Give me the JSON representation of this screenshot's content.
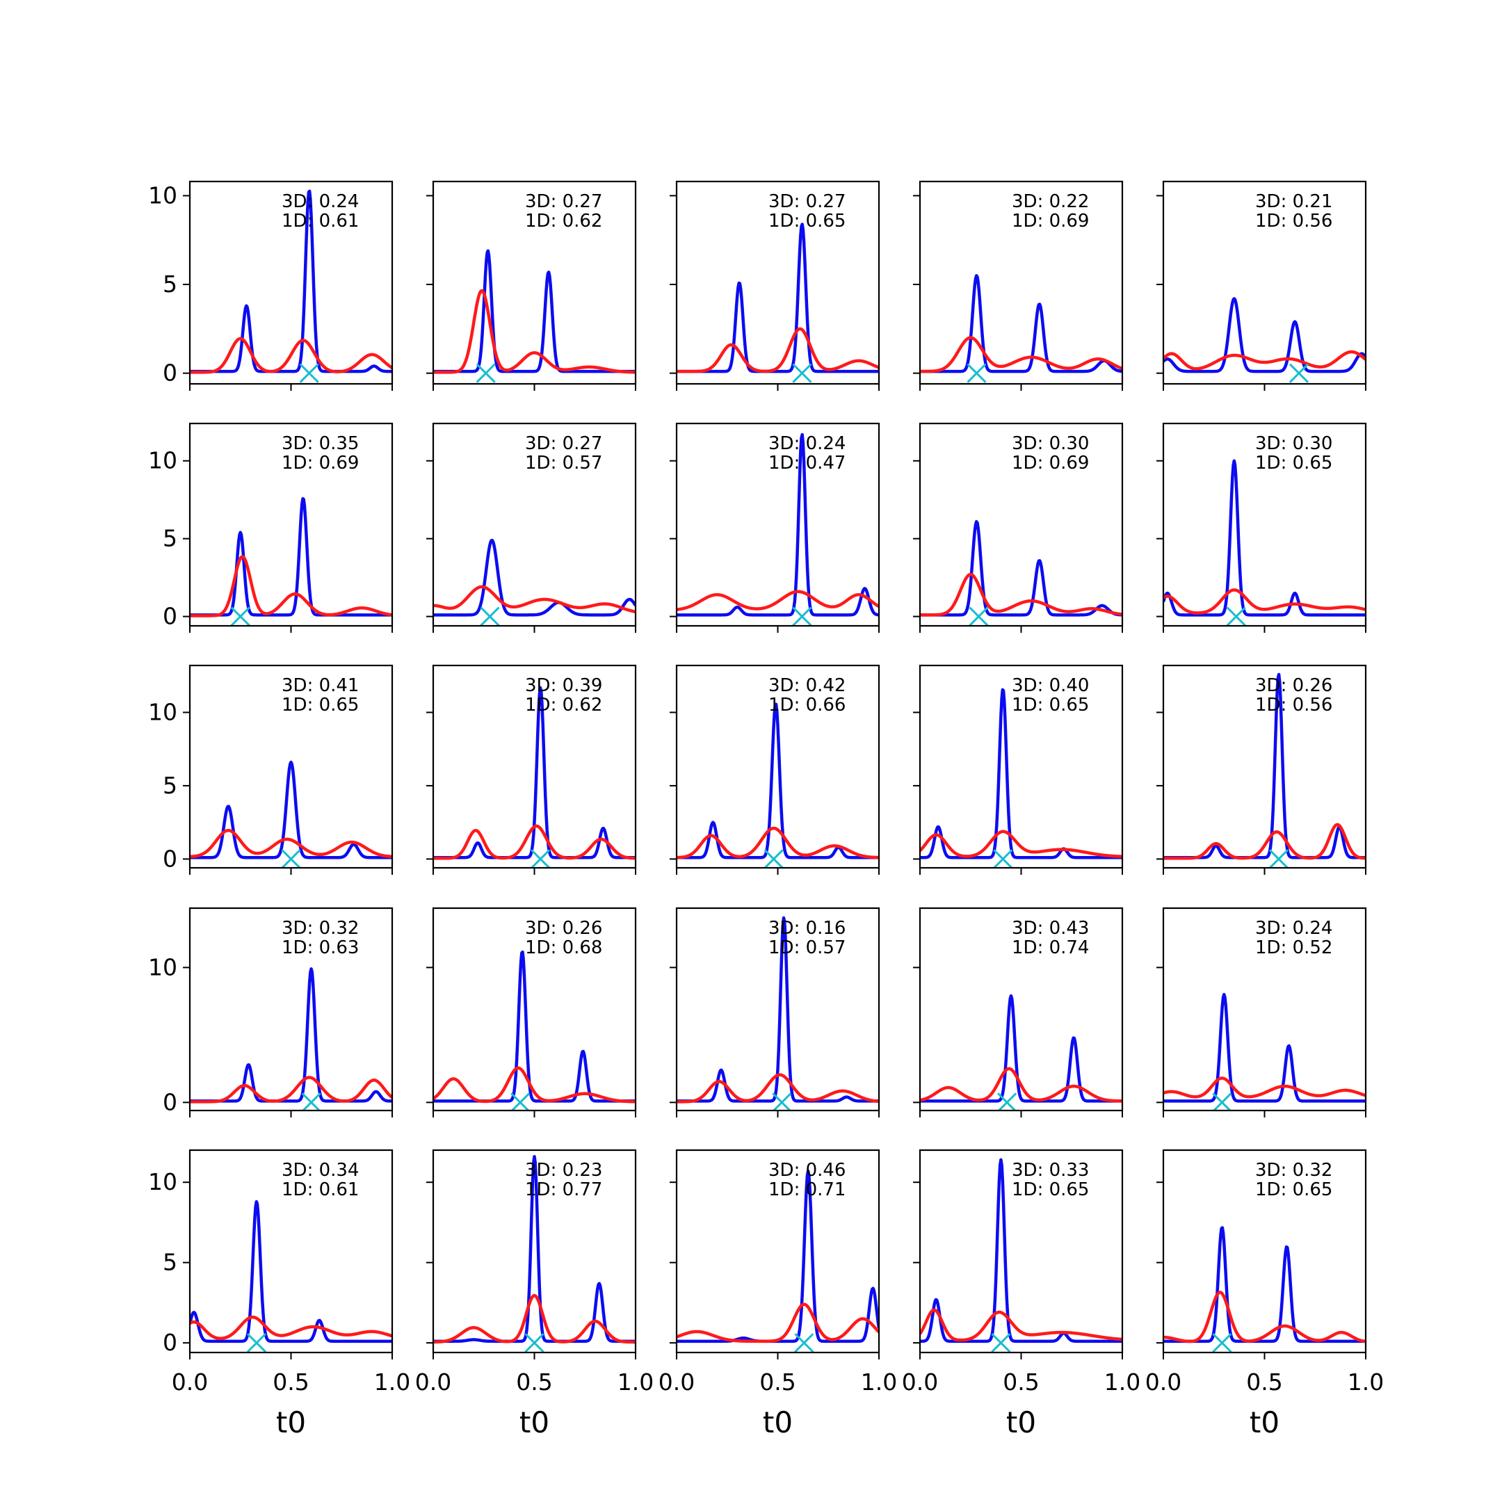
{
  "figure": {
    "xlabel": "t0",
    "colors": {
      "blue": "#0c0cf0",
      "red": "#ff1a1a",
      "cyan": "#17becf",
      "axes": "#000000"
    }
  },
  "chart_data": [
    {
      "type": "line",
      "row": 0,
      "col": 0,
      "ann3d": "3D: 0.24",
      "ann1d": "1D: 0.61",
      "ylim": [
        -0.6,
        10.8
      ],
      "yticks": [
        0,
        5,
        10
      ],
      "marker_x": 0.59,
      "blue_peaks": [
        [
          0.28,
          3.7,
          0.018
        ],
        [
          0.59,
          10.2,
          0.018
        ],
        [
          0.91,
          0.3,
          0.02
        ]
      ],
      "blue_base": 0.1,
      "red_peaks": [
        [
          0.25,
          1.9,
          0.05
        ],
        [
          0.56,
          1.8,
          0.055
        ],
        [
          0.9,
          1.0,
          0.06
        ]
      ],
      "red_base": 0.05
    },
    {
      "type": "line",
      "row": 0,
      "col": 1,
      "ann3d": "3D: 0.27",
      "ann1d": "1D: 0.62",
      "ylim": [
        -0.6,
        10.8
      ],
      "yticks": [
        0,
        5,
        10
      ],
      "marker_x": 0.26,
      "blue_peaks": [
        [
          0.27,
          6.8,
          0.018
        ],
        [
          0.57,
          5.6,
          0.018
        ]
      ],
      "blue_base": 0.1,
      "red_peaks": [
        [
          0.24,
          4.6,
          0.04
        ],
        [
          0.5,
          1.1,
          0.06
        ],
        [
          0.77,
          0.3,
          0.08
        ]
      ],
      "red_base": 0.05
    },
    {
      "type": "line",
      "row": 0,
      "col": 2,
      "ann3d": "3D: 0.27",
      "ann1d": "1D: 0.65",
      "ylim": [
        -0.6,
        10.8
      ],
      "yticks": [
        0,
        5,
        10
      ],
      "marker_x": 0.62,
      "blue_peaks": [
        [
          0.31,
          5.0,
          0.018
        ],
        [
          0.62,
          8.3,
          0.018
        ]
      ],
      "blue_base": 0.1,
      "red_peaks": [
        [
          0.27,
          1.5,
          0.05
        ],
        [
          0.61,
          2.4,
          0.05
        ],
        [
          0.9,
          0.6,
          0.07
        ]
      ],
      "red_base": 0.1
    },
    {
      "type": "line",
      "row": 0,
      "col": 3,
      "ann3d": "3D: 0.22",
      "ann1d": "1D: 0.69",
      "ylim": [
        -0.6,
        10.8
      ],
      "yticks": [
        0,
        5,
        10
      ],
      "marker_x": 0.28,
      "blue_peaks": [
        [
          0.28,
          5.4,
          0.02
        ],
        [
          0.59,
          3.8,
          0.02
        ],
        [
          0.91,
          0.6,
          0.03
        ]
      ],
      "blue_base": 0.1,
      "red_peaks": [
        [
          0.25,
          1.9,
          0.06
        ],
        [
          0.55,
          0.8,
          0.09
        ],
        [
          0.88,
          0.7,
          0.07
        ]
      ],
      "red_base": 0.1
    },
    {
      "type": "line",
      "row": 0,
      "col": 4,
      "ann3d": "3D: 0.21",
      "ann1d": "1D: 0.56",
      "ylim": [
        -0.6,
        10.8
      ],
      "yticks": [
        0,
        5,
        10
      ],
      "marker_x": 0.67,
      "blue_peaks": [
        [
          0.35,
          4.1,
          0.025
        ],
        [
          0.65,
          2.8,
          0.022
        ],
        [
          0.02,
          0.7,
          0.03
        ],
        [
          0.98,
          1.0,
          0.03
        ]
      ],
      "blue_base": 0.1,
      "red_peaks": [
        [
          0.04,
          1.0,
          0.05
        ],
        [
          0.35,
          0.9,
          0.09
        ],
        [
          0.62,
          0.7,
          0.09
        ],
        [
          0.93,
          1.1,
          0.07
        ]
      ],
      "red_base": 0.1
    },
    {
      "type": "line",
      "row": 1,
      "col": 0,
      "ann3d": "3D: 0.35",
      "ann1d": "1D: 0.69",
      "ylim": [
        -0.6,
        12.4
      ],
      "yticks": [
        0,
        5,
        10
      ],
      "marker_x": 0.25,
      "blue_peaks": [
        [
          0.25,
          5.3,
          0.018
        ],
        [
          0.56,
          7.5,
          0.018
        ]
      ],
      "blue_base": 0.1,
      "red_peaks": [
        [
          0.26,
          3.8,
          0.04
        ],
        [
          0.52,
          1.4,
          0.06
        ],
        [
          0.85,
          0.5,
          0.07
        ]
      ],
      "red_base": 0.05
    },
    {
      "type": "line",
      "row": 1,
      "col": 1,
      "ann3d": "3D: 0.27",
      "ann1d": "1D: 0.57",
      "ylim": [
        -0.6,
        12.4
      ],
      "yticks": [
        0,
        5,
        10
      ],
      "marker_x": 0.28,
      "blue_peaks": [
        [
          0.29,
          4.8,
          0.028
        ],
        [
          0.62,
          0.8,
          0.04
        ],
        [
          0.97,
          1.0,
          0.03
        ]
      ],
      "blue_base": 0.1,
      "red_peaks": [
        [
          0.24,
          1.7,
          0.07
        ],
        [
          0.55,
          0.9,
          0.1
        ],
        [
          0.85,
          0.6,
          0.08
        ],
        [
          0.0,
          0.5,
          0.06
        ]
      ],
      "red_base": 0.2
    },
    {
      "type": "line",
      "row": 1,
      "col": 2,
      "ann3d": "3D: 0.24",
      "ann1d": "1D: 0.47",
      "ylim": [
        -0.6,
        12.4
      ],
      "yticks": [
        0,
        5,
        10
      ],
      "marker_x": 0.62,
      "blue_peaks": [
        [
          0.62,
          11.6,
          0.016
        ],
        [
          0.3,
          0.5,
          0.02
        ],
        [
          0.93,
          1.7,
          0.02
        ]
      ],
      "blue_base": 0.1,
      "red_peaks": [
        [
          0.2,
          1.0,
          0.08
        ],
        [
          0.6,
          1.2,
          0.08
        ],
        [
          0.9,
          1.0,
          0.06
        ]
      ],
      "red_base": 0.4
    },
    {
      "type": "line",
      "row": 1,
      "col": 3,
      "ann3d": "3D: 0.30",
      "ann1d": "1D: 0.69",
      "ylim": [
        -0.6,
        12.4
      ],
      "yticks": [
        0,
        5,
        10
      ],
      "marker_x": 0.29,
      "blue_peaks": [
        [
          0.28,
          6.0,
          0.02
        ],
        [
          0.59,
          3.5,
          0.02
        ],
        [
          0.9,
          0.6,
          0.03
        ]
      ],
      "blue_base": 0.1,
      "red_peaks": [
        [
          0.25,
          2.6,
          0.05
        ],
        [
          0.55,
          0.9,
          0.09
        ],
        [
          0.85,
          0.4,
          0.07
        ]
      ],
      "red_base": 0.1
    },
    {
      "type": "line",
      "row": 1,
      "col": 4,
      "ann3d": "3D: 0.30",
      "ann1d": "1D: 0.65",
      "ylim": [
        -0.6,
        12.4
      ],
      "yticks": [
        0,
        5,
        10
      ],
      "marker_x": 0.36,
      "blue_peaks": [
        [
          0.35,
          9.9,
          0.018
        ],
        [
          0.65,
          1.4,
          0.018
        ],
        [
          0.02,
          1.4,
          0.02
        ]
      ],
      "blue_base": 0.1,
      "red_peaks": [
        [
          0.02,
          1.1,
          0.05
        ],
        [
          0.35,
          1.5,
          0.06
        ],
        [
          0.65,
          0.6,
          0.1
        ],
        [
          0.92,
          0.4,
          0.08
        ]
      ],
      "red_base": 0.2
    },
    {
      "type": "line",
      "row": 2,
      "col": 0,
      "ann3d": "3D: 0.41",
      "ann1d": "1D: 0.65",
      "ylim": [
        -0.6,
        13.2
      ],
      "yticks": [
        0,
        5,
        10
      ],
      "marker_x": 0.5,
      "blue_peaks": [
        [
          0.19,
          3.5,
          0.022
        ],
        [
          0.5,
          6.5,
          0.022
        ],
        [
          0.81,
          0.9,
          0.022
        ]
      ],
      "blue_base": 0.1,
      "red_peaks": [
        [
          0.19,
          1.8,
          0.06
        ],
        [
          0.48,
          1.2,
          0.07
        ],
        [
          0.8,
          1.0,
          0.07
        ]
      ],
      "red_base": 0.15
    },
    {
      "type": "line",
      "row": 2,
      "col": 1,
      "ann3d": "3D: 0.39",
      "ann1d": "1D: 0.62",
      "ylim": [
        -0.6,
        13.2
      ],
      "yticks": [
        0,
        5,
        10
      ],
      "marker_x": 0.53,
      "blue_peaks": [
        [
          0.53,
          11.6,
          0.017
        ],
        [
          0.22,
          1.0,
          0.018
        ],
        [
          0.84,
          2.0,
          0.018
        ]
      ],
      "blue_base": 0.1,
      "red_peaks": [
        [
          0.21,
          1.9,
          0.04
        ],
        [
          0.51,
          2.2,
          0.05
        ],
        [
          0.83,
          1.3,
          0.05
        ]
      ],
      "red_base": 0.05
    },
    {
      "type": "line",
      "row": 2,
      "col": 2,
      "ann3d": "3D: 0.42",
      "ann1d": "1D: 0.66",
      "ylim": [
        -0.6,
        13.2
      ],
      "yticks": [
        0,
        5,
        10
      ],
      "marker_x": 0.48,
      "blue_peaks": [
        [
          0.49,
          10.5,
          0.018
        ],
        [
          0.18,
          2.4,
          0.018
        ],
        [
          0.8,
          0.7,
          0.018
        ]
      ],
      "blue_base": 0.1,
      "red_peaks": [
        [
          0.17,
          1.5,
          0.05
        ],
        [
          0.48,
          2.0,
          0.06
        ],
        [
          0.78,
          0.8,
          0.07
        ]
      ],
      "red_base": 0.1
    },
    {
      "type": "line",
      "row": 2,
      "col": 3,
      "ann3d": "3D: 0.40",
      "ann1d": "1D: 0.65",
      "ylim": [
        -0.6,
        13.2
      ],
      "yticks": [
        0,
        5,
        10
      ],
      "marker_x": 0.41,
      "blue_peaks": [
        [
          0.41,
          11.5,
          0.017
        ],
        [
          0.09,
          2.1,
          0.018
        ],
        [
          0.71,
          0.6,
          0.018
        ]
      ],
      "blue_base": 0.1,
      "red_peaks": [
        [
          0.08,
          1.5,
          0.05
        ],
        [
          0.41,
          1.7,
          0.06
        ],
        [
          0.7,
          0.5,
          0.12
        ]
      ],
      "red_base": 0.15
    },
    {
      "type": "line",
      "row": 2,
      "col": 4,
      "ann3d": "3D: 0.26",
      "ann1d": "1D: 0.56",
      "ylim": [
        -0.6,
        13.2
      ],
      "yticks": [
        0,
        5,
        10
      ],
      "marker_x": 0.57,
      "blue_peaks": [
        [
          0.57,
          12.5,
          0.017
        ],
        [
          0.26,
          0.8,
          0.018
        ],
        [
          0.87,
          2.1,
          0.018
        ]
      ],
      "blue_base": 0.1,
      "red_peaks": [
        [
          0.26,
          1.0,
          0.04
        ],
        [
          0.56,
          1.8,
          0.05
        ],
        [
          0.86,
          2.3,
          0.04
        ]
      ],
      "red_base": 0.05
    },
    {
      "type": "line",
      "row": 3,
      "col": 0,
      "ann3d": "3D: 0.32",
      "ann1d": "1D: 0.63",
      "ylim": [
        -0.6,
        14.4
      ],
      "yticks": [
        0,
        10
      ],
      "marker_x": 0.6,
      "blue_peaks": [
        [
          0.29,
          2.7,
          0.018
        ],
        [
          0.6,
          9.8,
          0.018
        ],
        [
          0.92,
          0.7,
          0.02
        ]
      ],
      "blue_base": 0.1,
      "red_peaks": [
        [
          0.27,
          1.2,
          0.05
        ],
        [
          0.59,
          1.8,
          0.06
        ],
        [
          0.91,
          1.6,
          0.05
        ]
      ],
      "red_base": 0.05
    },
    {
      "type": "line",
      "row": 3,
      "col": 1,
      "ann3d": "3D: 0.26",
      "ann1d": "1D: 0.68",
      "ylim": [
        -0.6,
        14.4
      ],
      "yticks": [
        0,
        10
      ],
      "marker_x": 0.43,
      "blue_peaks": [
        [
          0.44,
          11.1,
          0.017
        ],
        [
          0.74,
          3.7,
          0.017
        ]
      ],
      "blue_base": 0.1,
      "red_peaks": [
        [
          0.1,
          1.7,
          0.05
        ],
        [
          0.42,
          2.5,
          0.05
        ],
        [
          0.75,
          0.6,
          0.08
        ]
      ],
      "red_base": 0.05
    },
    {
      "type": "line",
      "row": 3,
      "col": 2,
      "ann3d": "3D: 0.16",
      "ann1d": "1D: 0.57",
      "ylim": [
        -0.6,
        14.4
      ],
      "yticks": [
        0,
        10
      ],
      "marker_x": 0.52,
      "blue_peaks": [
        [
          0.53,
          13.6,
          0.016
        ],
        [
          0.22,
          2.3,
          0.018
        ],
        [
          0.84,
          0.3,
          0.02
        ]
      ],
      "blue_base": 0.1,
      "red_peaks": [
        [
          0.21,
          1.5,
          0.05
        ],
        [
          0.51,
          2.0,
          0.06
        ],
        [
          0.82,
          0.8,
          0.07
        ]
      ],
      "red_base": 0.05
    },
    {
      "type": "line",
      "row": 3,
      "col": 3,
      "ann3d": "3D: 0.43",
      "ann1d": "1D: 0.74",
      "ylim": [
        -0.6,
        14.4
      ],
      "yticks": [
        0,
        10
      ],
      "marker_x": 0.43,
      "blue_peaks": [
        [
          0.45,
          7.8,
          0.018
        ],
        [
          0.76,
          4.7,
          0.018
        ]
      ],
      "blue_base": 0.1,
      "red_peaks": [
        [
          0.14,
          1.0,
          0.06
        ],
        [
          0.44,
          2.4,
          0.05
        ],
        [
          0.76,
          1.1,
          0.07
        ]
      ],
      "red_base": 0.1
    },
    {
      "type": "line",
      "row": 3,
      "col": 4,
      "ann3d": "3D: 0.24",
      "ann1d": "1D: 0.52",
      "ylim": [
        -0.6,
        14.4
      ],
      "yticks": [
        0,
        10
      ],
      "marker_x": 0.29,
      "blue_peaks": [
        [
          0.3,
          7.9,
          0.018
        ],
        [
          0.62,
          4.1,
          0.018
        ]
      ],
      "blue_base": 0.1,
      "red_peaks": [
        [
          0.29,
          1.5,
          0.05
        ],
        [
          0.6,
          0.9,
          0.08
        ],
        [
          0.9,
          0.6,
          0.07
        ],
        [
          0.04,
          0.5,
          0.06
        ]
      ],
      "red_base": 0.3
    },
    {
      "type": "line",
      "row": 4,
      "col": 0,
      "ann3d": "3D: 0.34",
      "ann1d": "1D: 0.61",
      "ylim": [
        -0.6,
        12.0
      ],
      "yticks": [
        0,
        5,
        10
      ],
      "marker_x": 0.33,
      "blue_peaks": [
        [
          0.33,
          8.7,
          0.018
        ],
        [
          0.64,
          1.3,
          0.018
        ],
        [
          0.02,
          1.8,
          0.02
        ]
      ],
      "blue_base": 0.1,
      "red_peaks": [
        [
          0.02,
          1.1,
          0.05
        ],
        [
          0.31,
          1.4,
          0.06
        ],
        [
          0.61,
          0.8,
          0.09
        ],
        [
          0.9,
          0.5,
          0.08
        ]
      ],
      "red_base": 0.2
    },
    {
      "type": "line",
      "row": 4,
      "col": 1,
      "ann3d": "3D: 0.23",
      "ann1d": "1D: 0.77",
      "ylim": [
        -0.6,
        12.0
      ],
      "yticks": [
        0,
        5,
        10
      ],
      "marker_x": 0.5,
      "blue_peaks": [
        [
          0.5,
          11.5,
          0.016
        ],
        [
          0.82,
          3.6,
          0.018
        ],
        [
          0.2,
          0.1,
          0.03
        ]
      ],
      "blue_base": 0.1,
      "red_peaks": [
        [
          0.2,
          0.9,
          0.06
        ],
        [
          0.5,
          2.9,
          0.04
        ],
        [
          0.8,
          1.3,
          0.05
        ]
      ],
      "red_base": 0.05
    },
    {
      "type": "line",
      "row": 4,
      "col": 2,
      "ann3d": "3D: 0.46",
      "ann1d": "1D: 0.71",
      "ylim": [
        -0.6,
        12.0
      ],
      "yticks": [
        0,
        5,
        10
      ],
      "marker_x": 0.63,
      "blue_peaks": [
        [
          0.65,
          10.6,
          0.018
        ],
        [
          0.97,
          3.3,
          0.018
        ],
        [
          0.33,
          0.2,
          0.03
        ]
      ],
      "blue_base": 0.1,
      "red_peaks": [
        [
          0.1,
          0.6,
          0.08
        ],
        [
          0.63,
          2.3,
          0.05
        ],
        [
          0.92,
          1.4,
          0.06
        ]
      ],
      "red_base": 0.1
    },
    {
      "type": "line",
      "row": 4,
      "col": 3,
      "ann3d": "3D: 0.33",
      "ann1d": "1D: 0.65",
      "ylim": [
        -0.6,
        12.0
      ],
      "yticks": [
        0,
        5,
        10
      ],
      "marker_x": 0.4,
      "blue_peaks": [
        [
          0.4,
          11.3,
          0.017
        ],
        [
          0.08,
          2.6,
          0.018
        ],
        [
          0.71,
          0.5,
          0.018
        ]
      ],
      "blue_base": 0.1,
      "red_peaks": [
        [
          0.07,
          1.9,
          0.04
        ],
        [
          0.39,
          1.7,
          0.06
        ],
        [
          0.7,
          0.5,
          0.15
        ]
      ],
      "red_base": 0.15
    },
    {
      "type": "line",
      "row": 4,
      "col": 4,
      "ann3d": "3D: 0.32",
      "ann1d": "1D: 0.65",
      "ylim": [
        -0.6,
        12.0
      ],
      "yticks": [
        0,
        5,
        10
      ],
      "marker_x": 0.29,
      "blue_peaks": [
        [
          0.29,
          7.1,
          0.018
        ],
        [
          0.61,
          5.9,
          0.018
        ]
      ],
      "blue_base": 0.1,
      "red_peaks": [
        [
          0.28,
          3.1,
          0.045
        ],
        [
          0.6,
          1.0,
          0.07
        ],
        [
          0.88,
          0.6,
          0.05
        ],
        [
          0.0,
          0.3,
          0.06
        ]
      ],
      "red_base": 0.05
    }
  ],
  "xticks": [
    "0.0",
    "0.5",
    "1.0"
  ],
  "xtick_values": [
    0,
    0.5,
    1
  ]
}
